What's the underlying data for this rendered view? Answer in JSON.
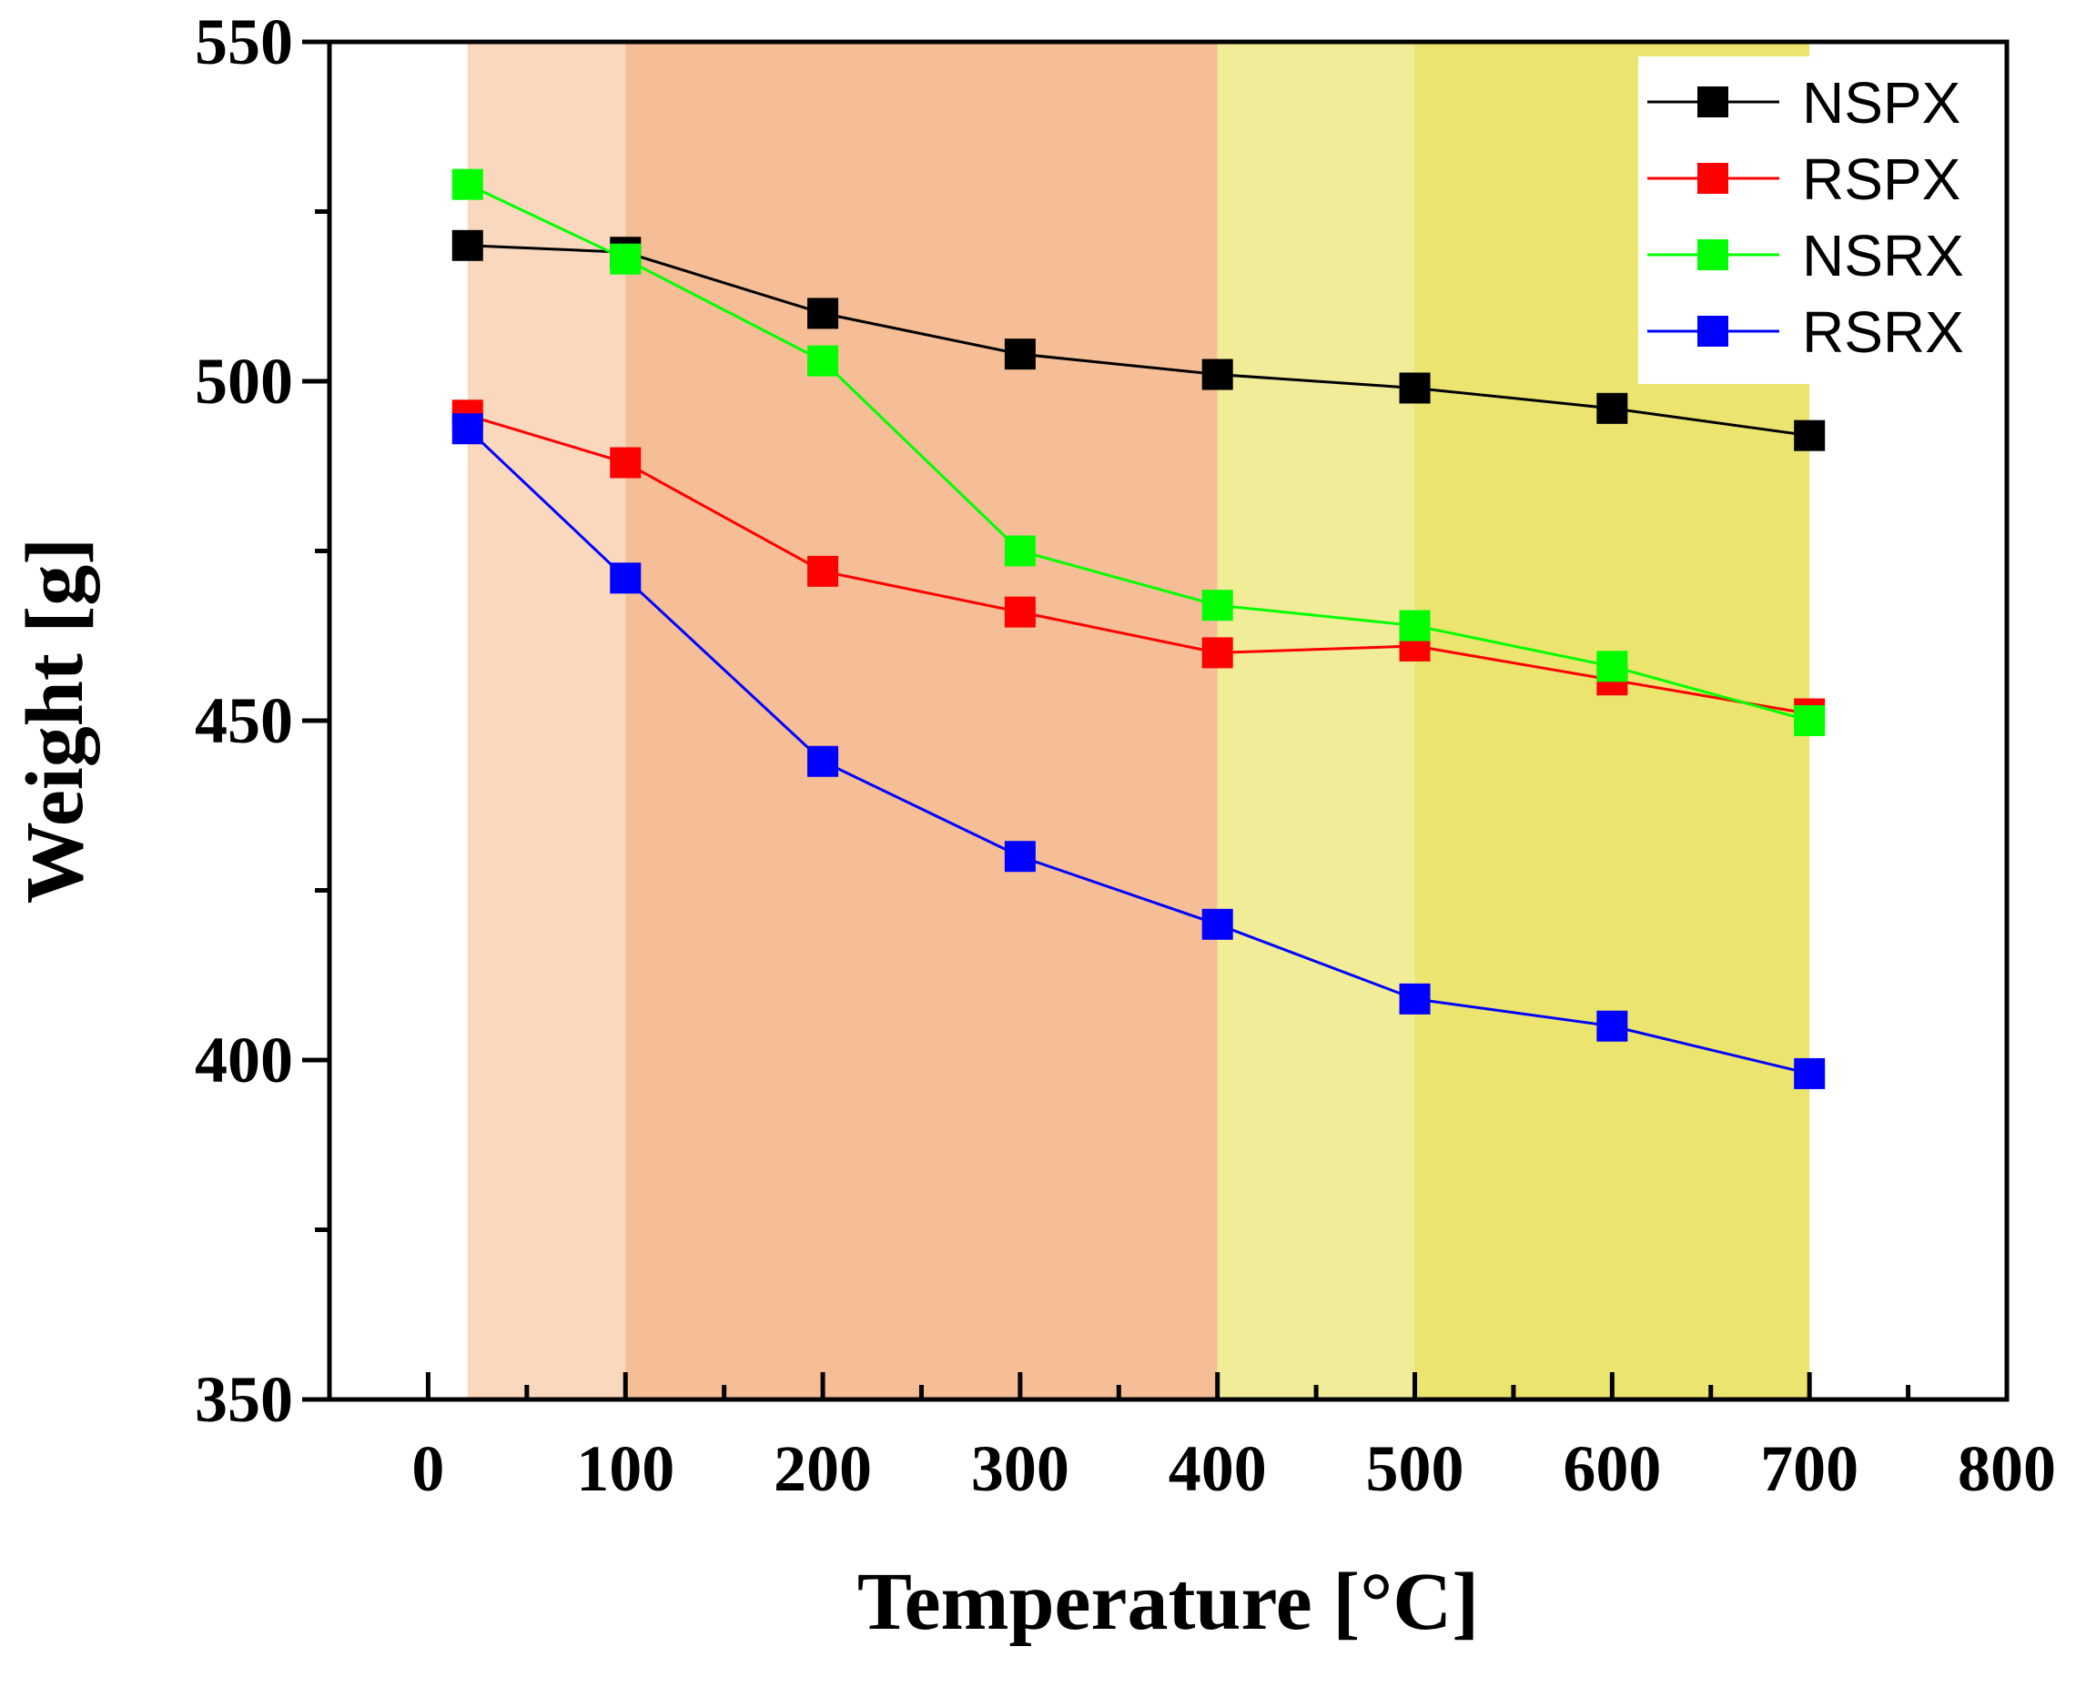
{
  "chart_data": {
    "type": "line",
    "xlabel": "Temperature [°C]",
    "ylabel": "Weight [g]",
    "xlim": [
      -50,
      800
    ],
    "ylim": [
      350,
      550
    ],
    "x_ticks": [
      0,
      100,
      200,
      300,
      400,
      500,
      600,
      700,
      800
    ],
    "y_ticks": [
      350,
      400,
      450,
      500,
      550
    ],
    "x_tick_labels": [
      "0",
      "100",
      "200",
      "300",
      "400",
      "500",
      "600",
      "700",
      "800"
    ],
    "y_tick_labels": [
      "350",
      "400",
      "450",
      "500",
      "550"
    ],
    "x": [
      20,
      100,
      200,
      300,
      400,
      500,
      600,
      700
    ],
    "series": [
      {
        "name": "NSPX",
        "color": "#000000",
        "values": [
          520,
          519,
          510,
          504,
          501,
          499,
          496,
          492
        ]
      },
      {
        "name": "RSPX",
        "color": "#ff0000",
        "values": [
          495,
          488,
          472,
          466,
          460,
          461,
          456,
          451
        ]
      },
      {
        "name": "NSRX",
        "color": "#00ff00",
        "values": [
          529,
          518,
          503,
          475,
          467,
          464,
          458,
          450
        ]
      },
      {
        "name": "RSRX",
        "color": "#0000ff",
        "values": [
          493,
          471,
          444,
          430,
          420,
          409,
          405,
          398
        ]
      }
    ],
    "background_bands": [
      {
        "from": 20,
        "to": 100,
        "color": "#f9d8bd"
      },
      {
        "from": 100,
        "to": 400,
        "color": "#f5be96"
      },
      {
        "from": 400,
        "to": 500,
        "color": "#f0ec98"
      },
      {
        "from": 500,
        "to": 700,
        "color": "#ebe46e"
      }
    ],
    "legend_position": "top-right"
  }
}
